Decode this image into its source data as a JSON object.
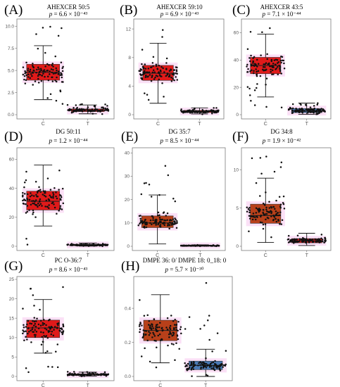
{
  "figure": {
    "pval_prefix": "p = "
  },
  "colors": {
    "red_box": "#e01a1a",
    "blue_box": "#4a7ab5",
    "pink_glow": "#f7c6ee",
    "point": "#111111",
    "axis": "#7a7a7a"
  },
  "chart_data": [
    {
      "letter": "(A)",
      "title": "AHEXCER 50:5",
      "pval": "6.6 × 10⁻⁴³",
      "type": "box",
      "categories": [
        "C",
        "T"
      ],
      "ylim": [
        0,
        10.5
      ],
      "yticks": [
        0,
        2.5,
        5.0,
        7.5,
        10.0
      ],
      "ytick_labels": [
        "0.0",
        "2.5",
        "5.0",
        "7.5",
        "10.0"
      ],
      "boxes": [
        {
          "category": "C",
          "min": 1.7,
          "q1": 3.9,
          "median": 4.8,
          "q3": 5.7,
          "max": 7.8,
          "fill": "red",
          "n_points": 110,
          "point_range": [
            1.0,
            10.2
          ]
        },
        {
          "category": "T",
          "min": 0.1,
          "q1": 0.35,
          "median": 0.5,
          "q3": 0.65,
          "max": 1.1,
          "fill": "red",
          "n_points": 110,
          "point_range": [
            0.05,
            1.2
          ]
        }
      ]
    },
    {
      "letter": "(B)",
      "title": "AHEXCER 59:10",
      "pval": "6.9 × 10⁻⁴³",
      "type": "box",
      "categories": [
        "C",
        "T"
      ],
      "ylim": [
        0,
        13
      ],
      "yticks": [
        0,
        4,
        8,
        12
      ],
      "ytick_labels": [
        "0",
        "4",
        "8",
        "12"
      ],
      "boxes": [
        {
          "category": "C",
          "min": 1.6,
          "q1": 4.8,
          "median": 5.8,
          "q3": 6.9,
          "max": 10.0,
          "fill": "red",
          "n_points": 110,
          "point_range": [
            0.8,
            12.4
          ]
        },
        {
          "category": "T",
          "min": 0.1,
          "q1": 0.3,
          "median": 0.45,
          "q3": 0.6,
          "max": 0.95,
          "fill": "red",
          "n_points": 110,
          "point_range": [
            0.05,
            1.0
          ]
        }
      ]
    },
    {
      "letter": "(C)",
      "title": "AHEXCER 43:5",
      "pval": "7.1 × 10⁻⁴⁴",
      "type": "box",
      "categories": [
        "C",
        "T"
      ],
      "ylim": [
        0,
        68
      ],
      "yticks": [
        0,
        20,
        40,
        60
      ],
      "ytick_labels": [
        "0",
        "20",
        "40",
        "60"
      ],
      "boxes": [
        {
          "category": "C",
          "min": 13,
          "q1": 30,
          "median": 36,
          "q3": 42,
          "max": 59,
          "fill": "red",
          "n_points": 110,
          "point_range": [
            2,
            66
          ]
        },
        {
          "category": "T",
          "min": 0.3,
          "q1": 1.5,
          "median": 2.5,
          "q3": 4.5,
          "max": 8.5,
          "fill": "blue",
          "n_points": 110,
          "point_range": [
            0.2,
            9
          ]
        }
      ]
    },
    {
      "letter": "(D)",
      "title": "DG 50:11",
      "pval": "1.2 × 10⁻⁴⁴",
      "type": "box",
      "categories": [
        "C",
        "T"
      ],
      "ylim": [
        0,
        66
      ],
      "yticks": [
        0,
        20,
        40,
        60
      ],
      "ytick_labels": [
        "0",
        "20",
        "40",
        "60"
      ],
      "boxes": [
        {
          "category": "C",
          "min": 14,
          "q1": 25,
          "median": 31,
          "q3": 38,
          "max": 56,
          "fill": "red",
          "n_points": 110,
          "point_range": [
            1,
            62
          ]
        },
        {
          "category": "T",
          "min": 0.1,
          "q1": 0.5,
          "median": 0.8,
          "q3": 1.3,
          "max": 2.2,
          "fill": "red",
          "n_points": 110,
          "point_range": [
            0.05,
            2.5
          ]
        }
      ]
    },
    {
      "letter": "(E)",
      "title": "DG 35:7",
      "pval": "8.5 × 10⁻⁴⁴",
      "type": "box",
      "categories": [
        "C",
        "T"
      ],
      "ylim": [
        0,
        41
      ],
      "yticks": [
        0,
        10,
        20,
        30,
        40
      ],
      "ytick_labels": [
        "0",
        "10",
        "20",
        "30",
        "40"
      ],
      "boxes": [
        {
          "category": "C",
          "min": 1.0,
          "q1": 8.0,
          "median": 10.0,
          "q3": 13.0,
          "max": 22.0,
          "fill": "brown",
          "n_points": 110,
          "point_range": [
            0.5,
            38.5
          ]
        },
        {
          "category": "T",
          "min": 0.05,
          "q1": 0.15,
          "median": 0.25,
          "q3": 0.4,
          "max": 0.6,
          "fill": "red",
          "n_points": 110,
          "point_range": [
            0.02,
            0.7
          ]
        }
      ]
    },
    {
      "letter": "(F)",
      "title": "DG 34:8",
      "pval": "1.9 × 10⁻⁴²",
      "type": "box",
      "categories": [
        "C",
        "T"
      ],
      "ylim": [
        0,
        12.5
      ],
      "yticks": [
        0,
        5,
        10
      ],
      "ytick_labels": [
        "0",
        "5",
        "10"
      ],
      "boxes": [
        {
          "category": "C",
          "min": 0.5,
          "q1": 3.0,
          "median": 4.0,
          "q3": 5.5,
          "max": 8.9,
          "fill": "brown",
          "n_points": 110,
          "point_range": [
            0.2,
            12.0
          ]
        },
        {
          "category": "T",
          "min": 0.1,
          "q1": 0.45,
          "median": 0.7,
          "q3": 1.0,
          "max": 1.7,
          "fill": "red",
          "n_points": 110,
          "point_range": [
            0.05,
            1.9
          ]
        }
      ]
    },
    {
      "letter": "(G)",
      "title": "PC O-36:7",
      "pval": "8.6 × 10⁻⁴³",
      "type": "box",
      "categories": [
        "C",
        "T"
      ],
      "ylim": [
        0,
        25
      ],
      "yticks": [
        0,
        5,
        10,
        15,
        20,
        25
      ],
      "ytick_labels": [
        "0",
        "5",
        "10",
        "15",
        "20",
        "25"
      ],
      "boxes": [
        {
          "category": "C",
          "min": 6,
          "q1": 10,
          "median": 12.5,
          "q3": 14.5,
          "max": 19.8,
          "fill": "red",
          "n_points": 110,
          "point_range": [
            0.8,
            23.5
          ]
        },
        {
          "category": "T",
          "min": 0.1,
          "q1": 0.3,
          "median": 0.45,
          "q3": 0.65,
          "max": 1.1,
          "fill": "red",
          "n_points": 110,
          "point_range": [
            0.05,
            1.2
          ]
        }
      ]
    },
    {
      "letter": "(H)",
      "title": "DMPE 36: 0/ DMPE 18: 0_18: 0",
      "pval": "5.7 × 10⁻³⁰",
      "type": "box",
      "categories": [
        "C",
        "T"
      ],
      "ylim": [
        0,
        0.57
      ],
      "yticks": [
        0.0,
        0.2,
        0.4
      ],
      "ytick_labels": [
        "0.0",
        "0.2",
        "0.4"
      ],
      "boxes": [
        {
          "category": "C",
          "min": 0.08,
          "q1": 0.21,
          "median": 0.27,
          "q3": 0.33,
          "max": 0.48,
          "fill": "brown",
          "n_points": 110,
          "point_range": [
            0.05,
            0.5
          ]
        },
        {
          "category": "T",
          "min": 0.0,
          "q1": 0.04,
          "median": 0.065,
          "q3": 0.09,
          "max": 0.16,
          "fill": "blue",
          "n_points": 110,
          "point_range": [
            0.0,
            0.55
          ]
        }
      ]
    }
  ]
}
